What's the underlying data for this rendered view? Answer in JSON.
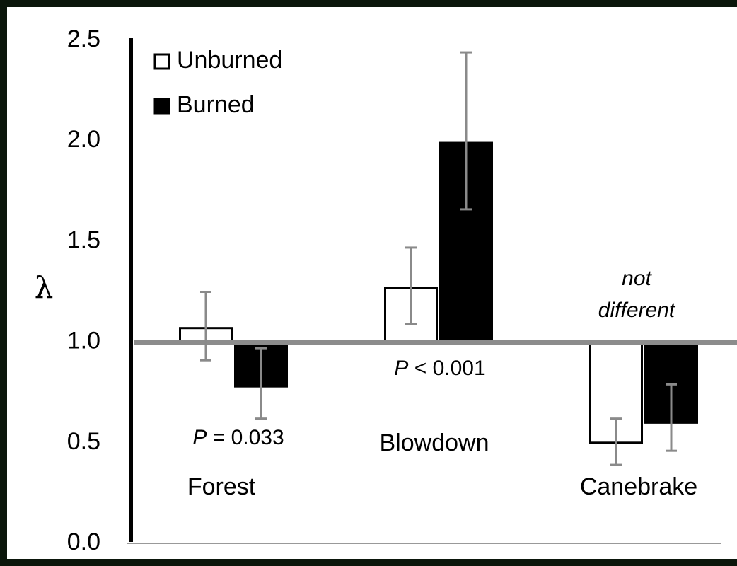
{
  "chart_data": {
    "type": "bar",
    "y_label": "λ",
    "categories": [
      "Forest",
      "Blowdown",
      "Canebrake"
    ],
    "series": [
      {
        "name": "Unburned",
        "color": "#ffffff",
        "values": [
          1.07,
          1.27,
          0.5
        ],
        "errors_minus": [
          0.16,
          0.18,
          0.11
        ],
        "errors_plus": [
          0.18,
          0.2,
          0.12
        ]
      },
      {
        "name": "Burned",
        "color": "#000000",
        "values": [
          0.78,
          1.99,
          0.6
        ],
        "errors_minus": [
          0.16,
          0.33,
          0.14
        ],
        "errors_plus": [
          0.19,
          0.45,
          0.19
        ]
      }
    ],
    "reference_line": 1,
    "ylim": [
      0,
      2.5
    ],
    "yticks": [
      {
        "value": 0,
        "label": "0.0"
      },
      0.5,
      {
        "value": 1,
        "label": "1.0"
      },
      1.5,
      {
        "value": 2,
        "label": "2.0"
      },
      2.5
    ],
    "annotations": [
      {
        "italic": "P",
        "text": " = 0.033"
      },
      {
        "italic": "P",
        "text": " < 0.001"
      },
      {
        "lines": [
          "not",
          "different"
        ]
      }
    ],
    "annotation_color": "#1f7bc0",
    "legend": "upper left"
  }
}
